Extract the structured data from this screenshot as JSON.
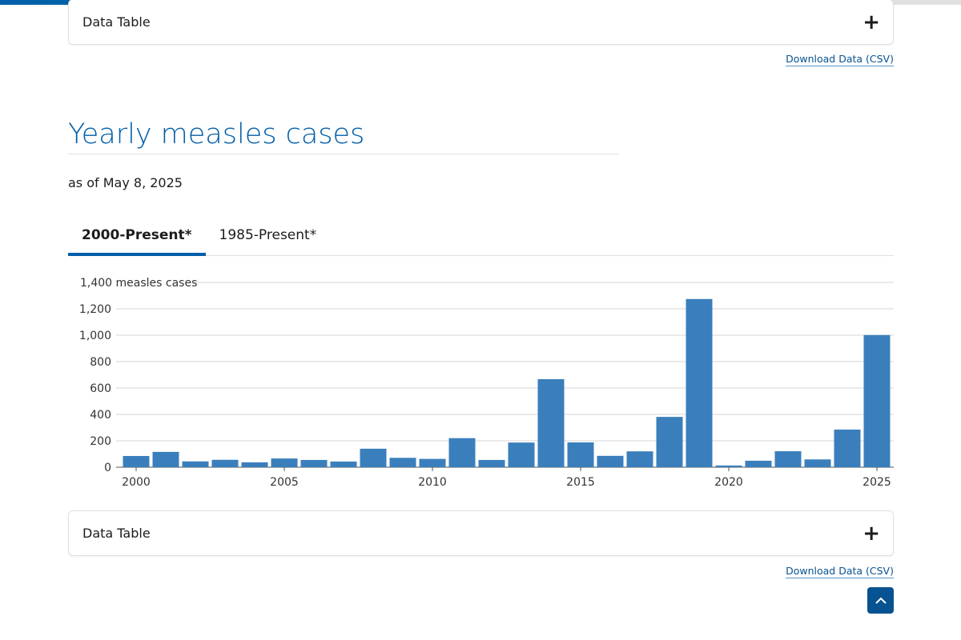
{
  "page_progress_percent": 50,
  "top_section": {
    "accordion_label": "Data Table",
    "download_label": "Download Data (CSV)"
  },
  "section": {
    "title": "Yearly measles cases",
    "as_of": "as of May 8, 2025",
    "tabs": [
      {
        "label": "2000-Present*",
        "active": true
      },
      {
        "label": "1985-Present*",
        "active": false
      }
    ],
    "accordion_label": "Data Table",
    "download_label": "Download Data (CSV)",
    "accordion_icon": "plus-icon",
    "back_to_top_icon": "chevron-up-icon"
  },
  "colors": {
    "bar": "#3a7fbc",
    "accent": "#005eaa"
  },
  "chart_data": {
    "type": "bar",
    "title": "",
    "ylabel": "measles cases",
    "top_tick_label": "1,400 measles cases",
    "ylim": [
      0,
      1400
    ],
    "yticks": [
      0,
      200,
      400,
      600,
      800,
      1000,
      1200,
      1400
    ],
    "ytick_labels": [
      "0",
      "200",
      "400",
      "600",
      "800",
      "1,000",
      "1,200",
      "1,400 measles cases"
    ],
    "xtick_labels": [
      "2000",
      "2005",
      "2010",
      "2015",
      "2020",
      "2025"
    ],
    "categories": [
      2000,
      2001,
      2002,
      2003,
      2004,
      2005,
      2006,
      2007,
      2008,
      2009,
      2010,
      2011,
      2012,
      2013,
      2014,
      2015,
      2016,
      2017,
      2018,
      2019,
      2020,
      2021,
      2022,
      2023,
      2024,
      2025
    ],
    "values": [
      85,
      116,
      44,
      56,
      37,
      66,
      55,
      43,
      140,
      71,
      63,
      220,
      55,
      187,
      667,
      188,
      86,
      120,
      381,
      1274,
      13,
      49,
      121,
      59,
      285,
      1001
    ],
    "grid": true
  }
}
